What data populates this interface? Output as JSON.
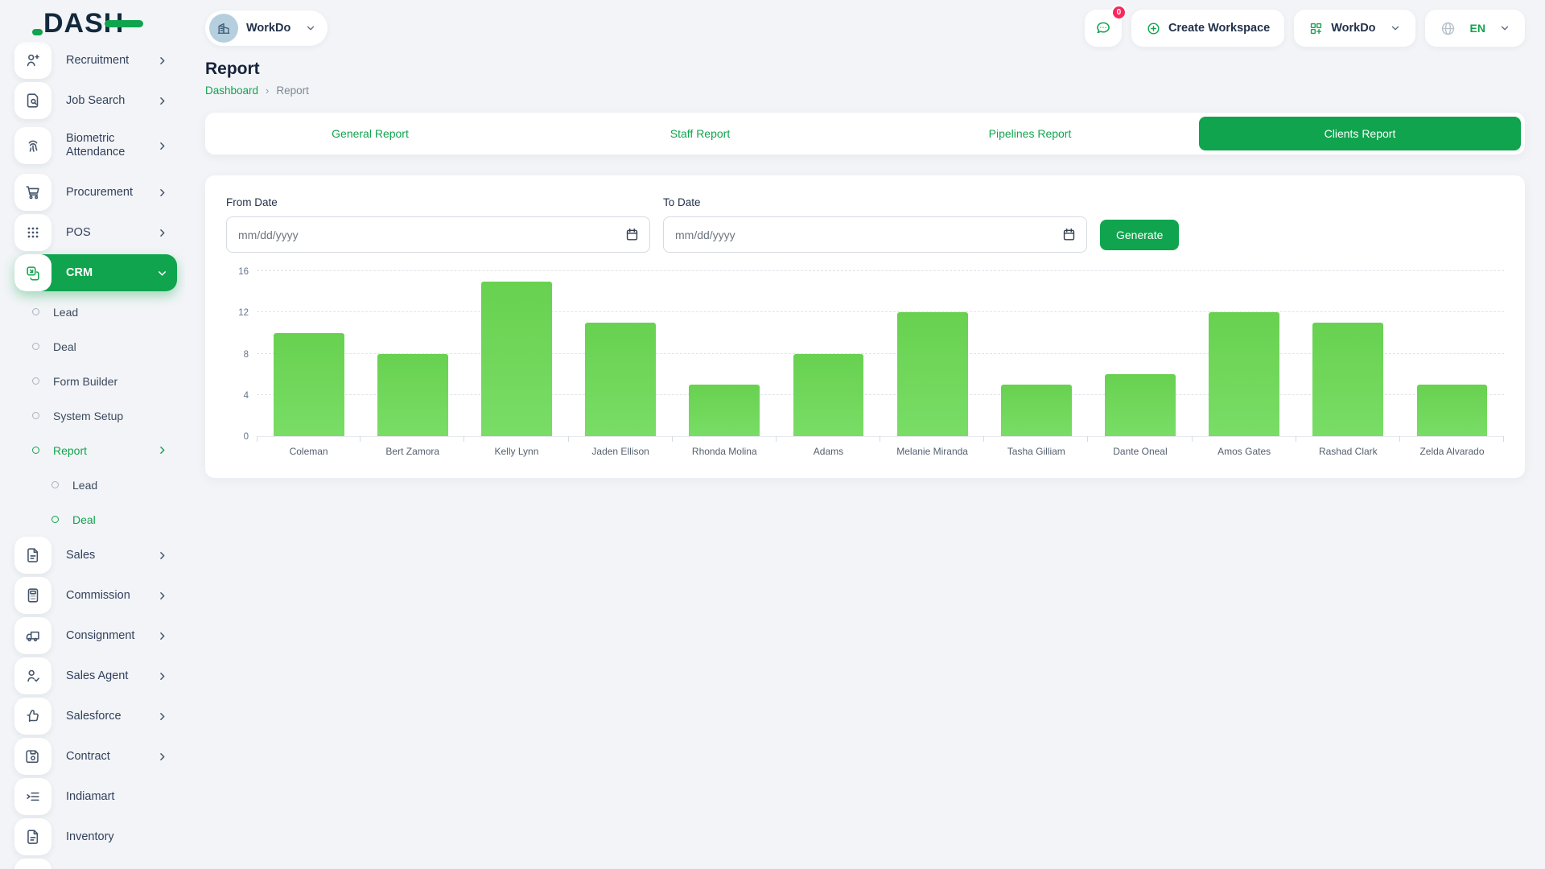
{
  "colors": {
    "accent": "#10a44e",
    "bar_green": "#6ed058",
    "badge_pink": "#f8285a"
  },
  "brand": {
    "logo_text": "DASH"
  },
  "topbar": {
    "workspace_label": "WorkDo",
    "messages_badge": "0",
    "create_workspace_label": "Create Workspace",
    "workdo_label": "WorkDo",
    "language": "EN"
  },
  "page": {
    "title": "Report",
    "breadcrumb": {
      "root": "Dashboard",
      "separator": "›",
      "current": "Report"
    }
  },
  "tabs": [
    {
      "label": "General Report",
      "active": false
    },
    {
      "label": "Staff Report",
      "active": false
    },
    {
      "label": "Pipelines Report",
      "active": false
    },
    {
      "label": "Clients Report",
      "active": true
    }
  ],
  "filters": {
    "from_label": "From Date",
    "to_label": "To Date",
    "date_placeholder": "mm/dd/yyyy",
    "generate_label": "Generate"
  },
  "sidebar": {
    "items": [
      {
        "label": "Recruitment",
        "icon": "user-plus-icon",
        "chevron": "right"
      },
      {
        "label": "Job Search",
        "icon": "file-search-icon",
        "chevron": "right"
      },
      {
        "label": "Biometric Attendance",
        "icon": "fingerprint-icon",
        "chevron": "right",
        "tall": true
      },
      {
        "label": "Procurement",
        "icon": "cart-icon",
        "chevron": "right"
      },
      {
        "label": "POS",
        "icon": "grid-dots-icon",
        "chevron": "right"
      },
      {
        "label": "CRM",
        "icon": "stack-icon",
        "chevron": "down",
        "active": true
      },
      {
        "label": "Lead",
        "type": "sub",
        "level": 1
      },
      {
        "label": "Deal",
        "type": "sub",
        "level": 1
      },
      {
        "label": "Form Builder",
        "type": "sub",
        "level": 1
      },
      {
        "label": "System Setup",
        "type": "sub",
        "level": 1
      },
      {
        "label": "Report",
        "type": "sub",
        "level": 1,
        "active": true,
        "chevron": "right"
      },
      {
        "label": "Lead",
        "type": "sub",
        "level": 2
      },
      {
        "label": "Deal",
        "type": "sub",
        "level": 2,
        "active": true
      },
      {
        "label": "Sales",
        "icon": "file-icon",
        "chevron": "right"
      },
      {
        "label": "Commission",
        "icon": "calculator-icon",
        "chevron": "right"
      },
      {
        "label": "Consignment",
        "icon": "truck-icon",
        "chevron": "right"
      },
      {
        "label": "Sales Agent",
        "icon": "user-check-icon",
        "chevron": "right"
      },
      {
        "label": "Salesforce",
        "icon": "thumbs-up-icon",
        "chevron": "right"
      },
      {
        "label": "Contract",
        "icon": "save-icon",
        "chevron": "right"
      },
      {
        "label": "Indiamart",
        "icon": "list-icon"
      },
      {
        "label": "Inventory",
        "icon": "file-icon"
      },
      {
        "label": "",
        "icon": "user-icon",
        "partial": true
      }
    ]
  },
  "chart_data": {
    "type": "bar",
    "categories": [
      "Coleman",
      "Bert Zamora",
      "Kelly Lynn",
      "Jaden Ellison",
      "Rhonda Molina",
      "Adams",
      "Melanie Miranda",
      "Tasha Gilliam",
      "Dante Oneal",
      "Amos Gates",
      "Rashad Clark",
      "Zelda Alvarado"
    ],
    "values": [
      10,
      8,
      15,
      11,
      5,
      8,
      12,
      5,
      6,
      12,
      11,
      5
    ],
    "title": "",
    "xlabel": "",
    "ylabel": "",
    "ylim": [
      0,
      16
    ],
    "yticks": [
      0,
      4,
      8,
      12,
      16
    ],
    "grid": "dashed-horizontal",
    "legend": "none"
  }
}
